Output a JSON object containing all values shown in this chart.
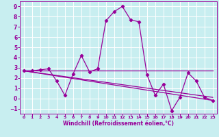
{
  "title": "",
  "xlabel": "Windchill (Refroidissement éolien,°C)",
  "background_color": "#c8eef0",
  "line_color": "#990099",
  "grid_color": "#ffffff",
  "xlim": [
    -0.5,
    23.5
  ],
  "ylim": [
    -1.5,
    9.5
  ],
  "xticks": [
    0,
    1,
    2,
    3,
    4,
    5,
    6,
    7,
    8,
    9,
    10,
    11,
    12,
    13,
    14,
    15,
    16,
    17,
    18,
    19,
    20,
    21,
    22,
    23
  ],
  "yticks": [
    -1,
    0,
    1,
    2,
    3,
    4,
    5,
    6,
    7,
    8,
    9
  ],
  "line_main": {
    "x": [
      0,
      1,
      2,
      3,
      4,
      5,
      6,
      7,
      8,
      9,
      10,
      11,
      12,
      13,
      14,
      15,
      16,
      17,
      18,
      19,
      20,
      21,
      22,
      23
    ],
    "y": [
      2.7,
      2.7,
      2.8,
      2.9,
      1.7,
      0.3,
      2.4,
      4.2,
      2.6,
      2.9,
      7.6,
      8.5,
      9.0,
      7.7,
      7.5,
      2.3,
      0.3,
      1.4,
      -1.2,
      0.1,
      2.5,
      1.7,
      0.1,
      -0.2
    ]
  },
  "line_trend1": {
    "x": [
      0,
      23
    ],
    "y": [
      2.7,
      2.7
    ]
  },
  "line_trend2": {
    "x": [
      0,
      23
    ],
    "y": [
      2.7,
      -0.2
    ]
  },
  "line_trend3": {
    "x": [
      0,
      23
    ],
    "y": [
      2.7,
      0.1
    ]
  }
}
